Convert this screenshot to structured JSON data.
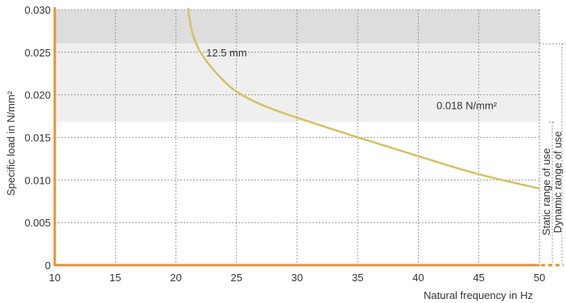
{
  "chart_data": {
    "type": "line",
    "xlabel": "Natural frequency in Hz",
    "ylabel": "Specific load in N/mm²",
    "xlim": [
      10,
      50
    ],
    "ylim": [
      0,
      0.03
    ],
    "x_ticks": [
      "10",
      "15",
      "20",
      "25",
      "30",
      "35",
      "40",
      "45",
      "50"
    ],
    "y_ticks": [
      "0",
      "0.005",
      "0.010",
      "0.015",
      "0.020",
      "0.025",
      "0.030"
    ],
    "grid": true,
    "series": [
      {
        "name": "12.5 mm",
        "color": "#d4c165",
        "x": [
          21.0,
          21.1,
          21.3,
          21.6,
          22.0,
          22.6,
          23.3,
          24.1,
          25.0,
          27.0,
          30.0,
          35.0,
          40.0,
          45.0,
          50.0
        ],
        "y": [
          0.0305,
          0.029,
          0.0275,
          0.0262,
          0.025,
          0.0238,
          0.0226,
          0.0214,
          0.0203,
          0.0188,
          0.0173,
          0.015,
          0.0128,
          0.0106,
          0.009
        ]
      }
    ],
    "annotations": [
      {
        "text": "12.5 mm",
        "x": 22.5,
        "y": 0.0245
      },
      {
        "text": "0.018 N/mm²",
        "x": 44.0,
        "y": 0.0183
      }
    ],
    "bands": [
      {
        "name": "upper",
        "from": 0.026,
        "to": 0.03,
        "color": "#dddddd"
      },
      {
        "name": "lower",
        "from": 0.0168,
        "to": 0.026,
        "color": "#efefef"
      }
    ],
    "range_labels": [
      "Static range of use",
      "Dynamic range of use"
    ],
    "colors": {
      "axis": "#e8913a",
      "grid": "#888888",
      "curve": "#d4c165"
    }
  }
}
